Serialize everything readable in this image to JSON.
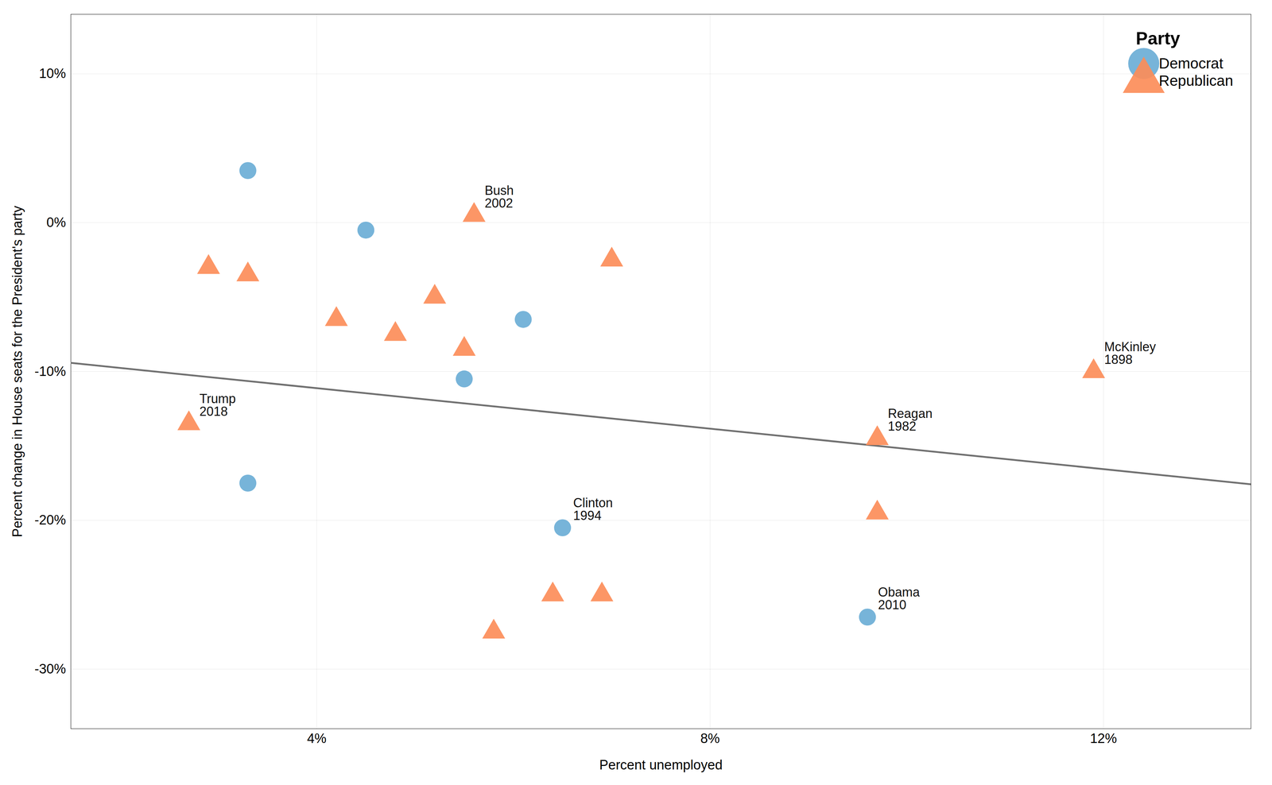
{
  "chart_data": {
    "type": "scatter",
    "xlabel": "Percent unemployed",
    "ylabel": "Percent change in House seats for the President's party",
    "xlim": [
      1.5,
      13.5
    ],
    "ylim": [
      -34,
      14
    ],
    "xticks": [
      {
        "value": 4,
        "label": "4%"
      },
      {
        "value": 8,
        "label": "8%"
      },
      {
        "value": 12,
        "label": "12%"
      }
    ],
    "yticks": [
      {
        "value": 10,
        "label": "10%"
      },
      {
        "value": 0,
        "label": "0%"
      },
      {
        "value": -10,
        "label": "-10%"
      },
      {
        "value": -20,
        "label": "-20%"
      },
      {
        "value": -30,
        "label": "-30%"
      }
    ],
    "grid": true,
    "legend": "upper right",
    "legend_title": "Party",
    "series": [
      {
        "name": "Democrat",
        "color": "#6baed6",
        "marker": "circle",
        "x": [
          3.3,
          3.3,
          4.5,
          5.5,
          6.1,
          6.5,
          9.6
        ],
        "y": [
          3.5,
          -17.5,
          -0.5,
          -10.5,
          -6.5,
          -20.5,
          -26.5
        ]
      },
      {
        "name": "Republican",
        "color": "#fc8d59",
        "marker": "triangle",
        "x": [
          5.6,
          2.9,
          3.3,
          4.2,
          4.8,
          5.2,
          5.5,
          6.4,
          6.9,
          5.8,
          7.0,
          9.7,
          9.7,
          2.7,
          11.9
        ],
        "y": [
          0.5,
          -3.0,
          -3.5,
          -6.5,
          -7.5,
          -5.0,
          -8.5,
          -25.0,
          -25.0,
          -27.5,
          -2.5,
          -14.5,
          -19.5,
          -13.5,
          -10.0
        ]
      }
    ],
    "regression_line": {
      "color": "#707070",
      "x": [
        1.5,
        13.5
      ],
      "y": [
        -9.42,
        -17.58
      ]
    },
    "annotations": [
      {
        "text": "Clinton\n1994",
        "x": 6.5,
        "y": -20.5
      },
      {
        "text": "Obama\n2010",
        "x": 9.6,
        "y": -26.5
      },
      {
        "text": "Bush\n2002",
        "x": 5.6,
        "y": 0.5
      },
      {
        "text": "Reagan\n1982",
        "x": 9.7,
        "y": -14.5
      },
      {
        "text": "Trump\n2018",
        "x": 2.7,
        "y": -13.5
      },
      {
        "text": "McKinley\n1898",
        "x": 11.9,
        "y": -10.0
      }
    ]
  }
}
